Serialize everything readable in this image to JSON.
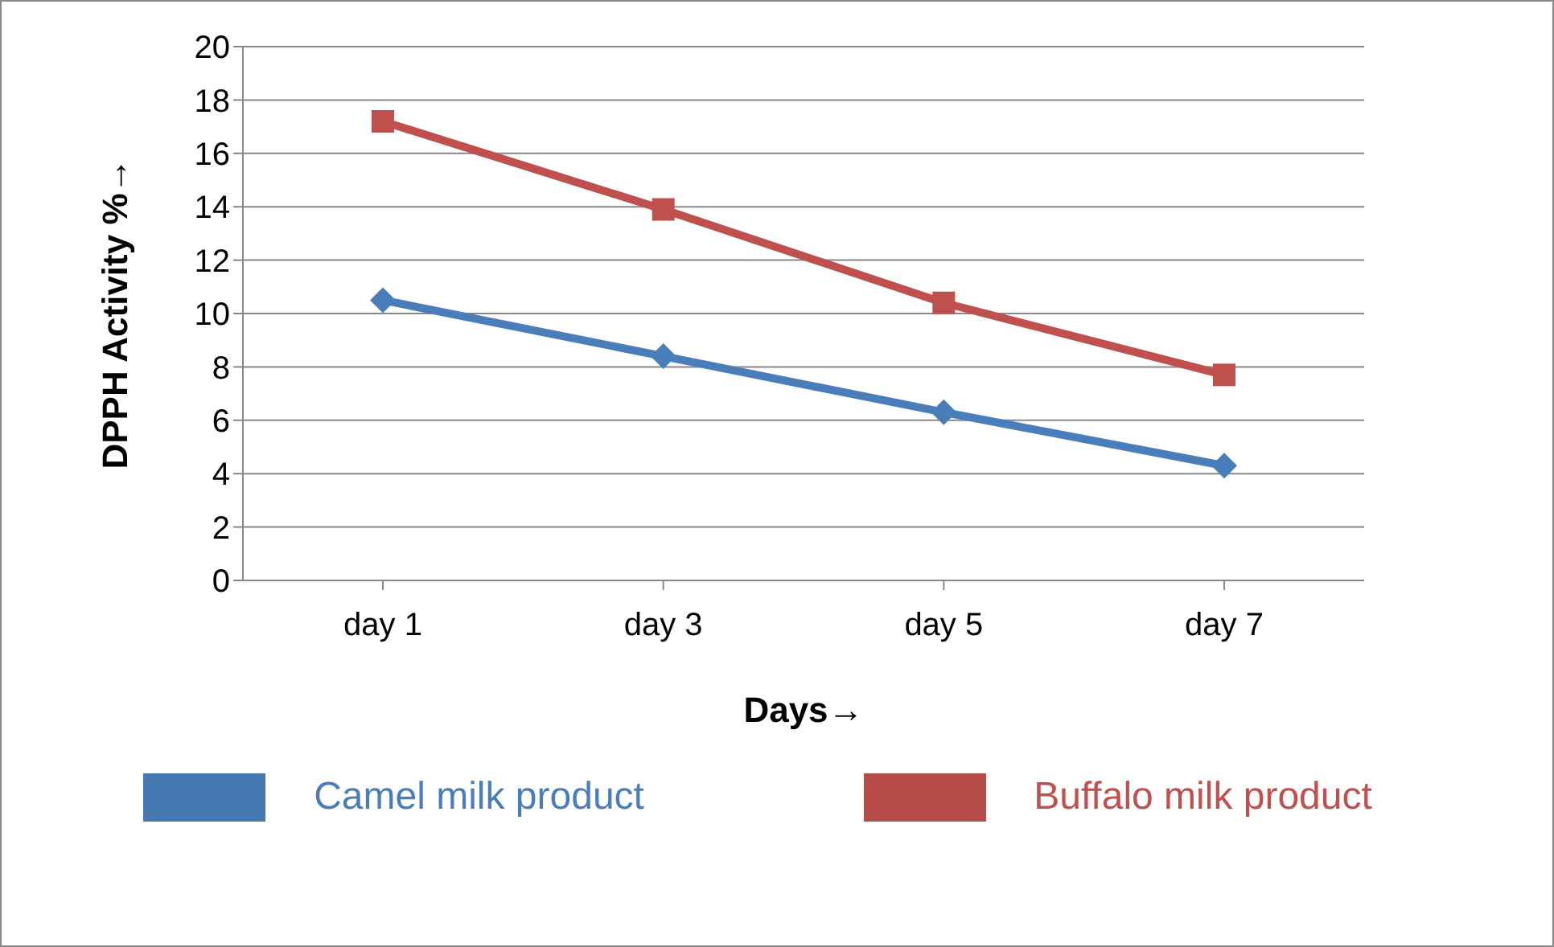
{
  "chart_data": {
    "type": "line",
    "xlabel": "Days→",
    "ylabel": "DPPH Activity %→",
    "categories": [
      "day 1",
      "day 3",
      "day 5",
      "day 7"
    ],
    "series": [
      {
        "name": "Camel milk product",
        "color": "#4a7ebb",
        "marker": "diamond",
        "values": [
          10.5,
          8.4,
          6.3,
          4.3
        ]
      },
      {
        "name": "Buffalo milk product",
        "color": "#c0504d",
        "marker": "square",
        "values": [
          17.2,
          13.9,
          10.4,
          7.7
        ]
      }
    ],
    "ylim": [
      0,
      20
    ],
    "yticks": [
      0,
      2,
      4,
      6,
      8,
      10,
      12,
      14,
      16,
      18,
      20
    ],
    "grid": "y",
    "legend": "bottom"
  }
}
